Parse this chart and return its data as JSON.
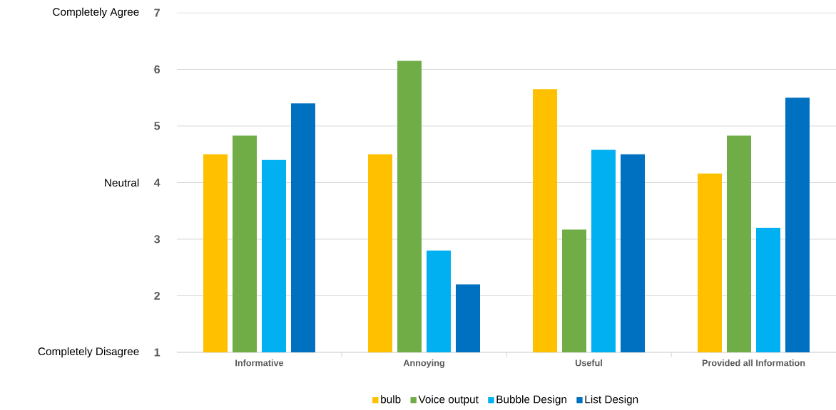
{
  "chart_data": {
    "type": "bar",
    "categories": [
      "Informative",
      "Annoying",
      "Useful",
      "Provided all Information"
    ],
    "series": [
      {
        "name": "bulb",
        "color": "#ffc000",
        "values": [
          4.5,
          4.5,
          5.65,
          4.16
        ]
      },
      {
        "name": "Voice output",
        "color": "#70ad47",
        "values": [
          4.83,
          6.15,
          3.17,
          4.83
        ]
      },
      {
        "name": "Bubble Design",
        "color": "#00b0f0",
        "values": [
          4.4,
          2.8,
          4.58,
          3.2
        ]
      },
      {
        "name": "List Design",
        "color": "#0070c0",
        "values": [
          5.4,
          2.2,
          4.5,
          5.5
        ]
      }
    ],
    "ylim": [
      1,
      7
    ],
    "yticks": [
      1,
      2,
      3,
      4,
      5,
      6,
      7
    ],
    "grid": "y",
    "legend": "bottom",
    "annotations": [
      "Completely Agree",
      "Neutral",
      "Completely Disagree"
    ]
  }
}
